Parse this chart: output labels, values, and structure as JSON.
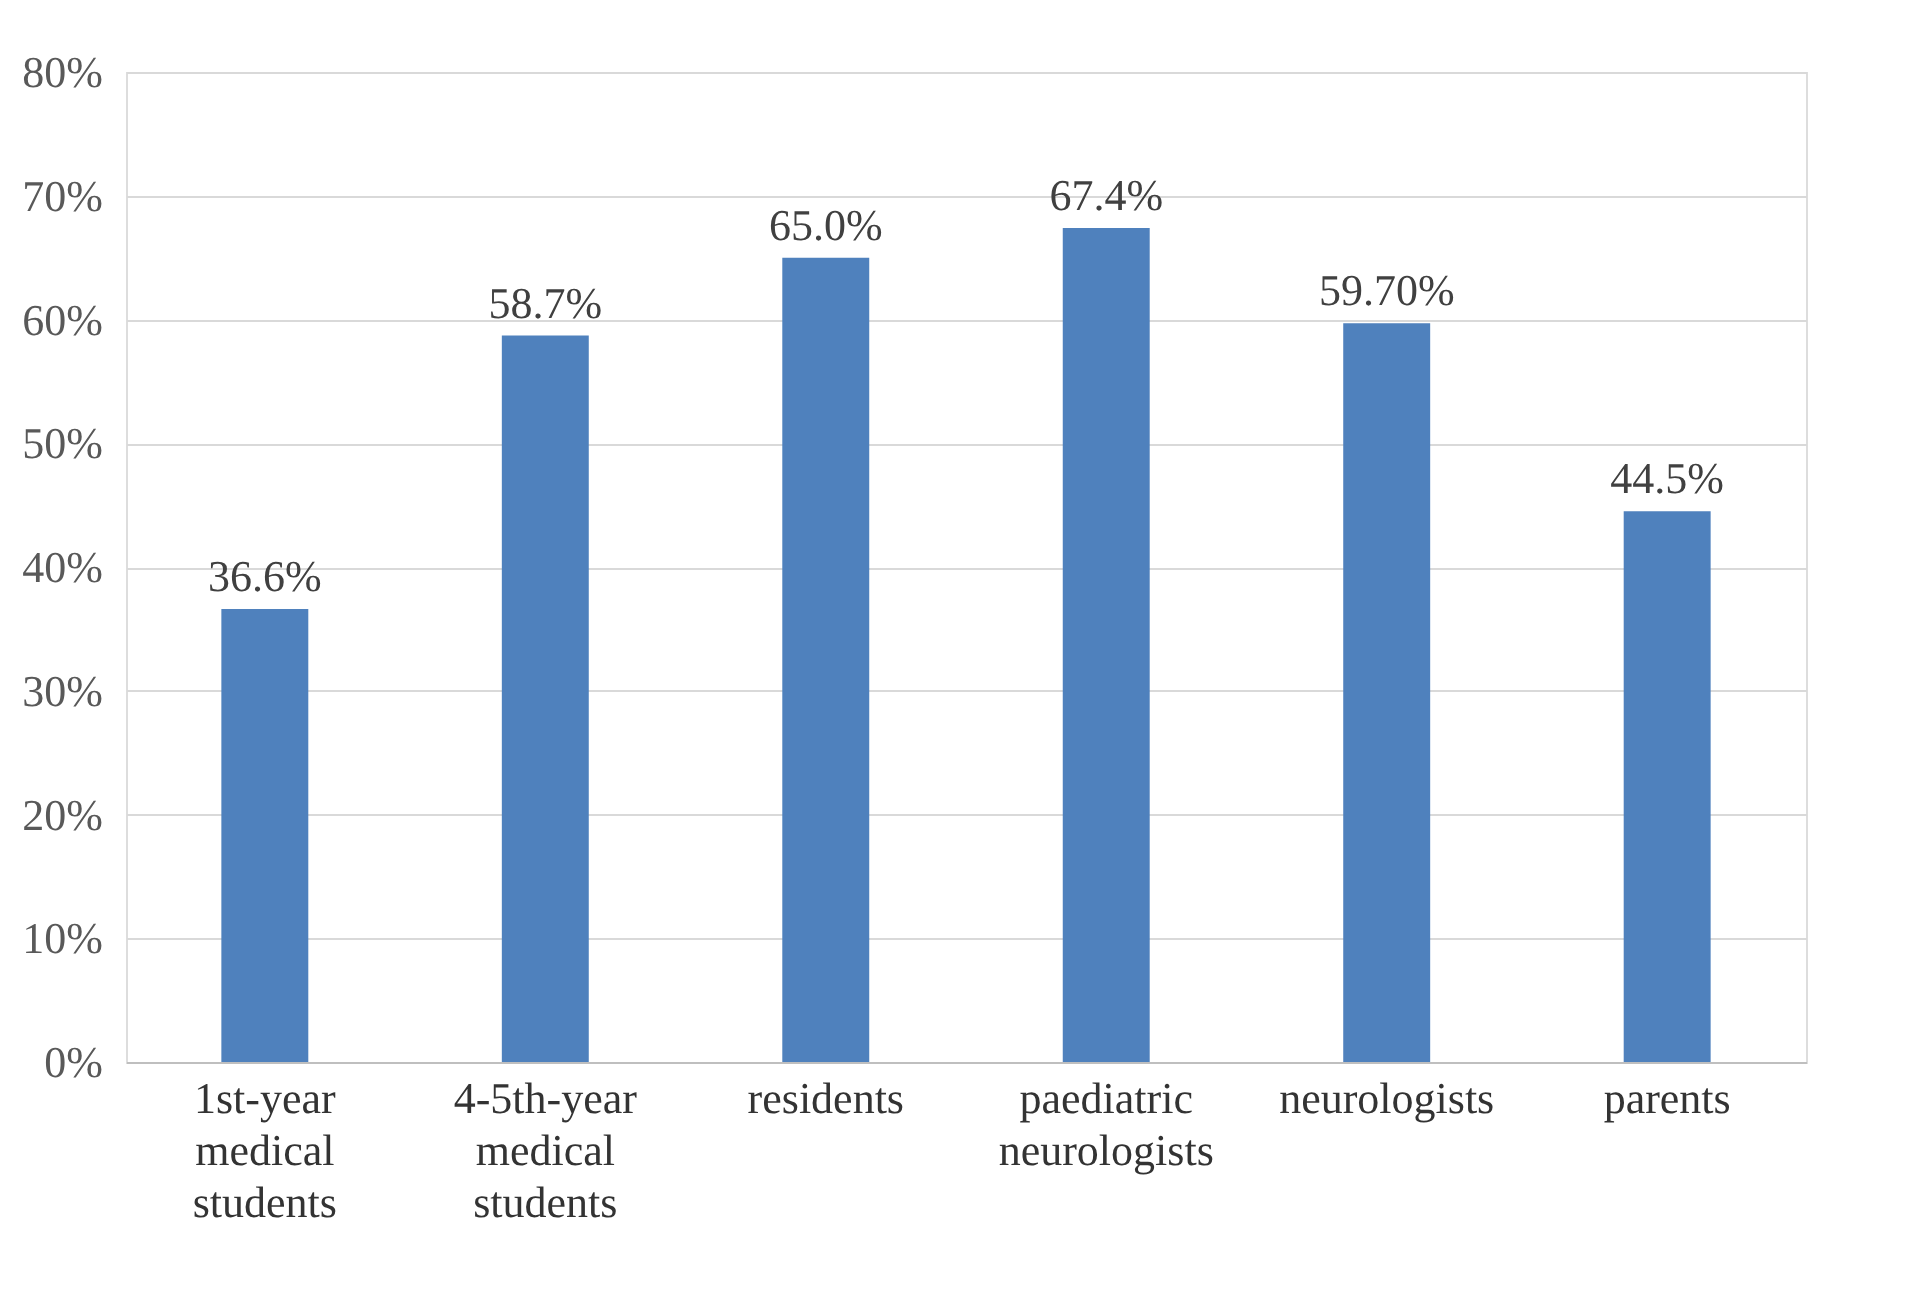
{
  "chart_data": {
    "type": "bar",
    "categories": [
      "1st-year\nmedical\nstudents",
      "4-5th-year\nmedical\nstudents",
      "residents",
      "paediatric\nneurologists",
      "neurologists",
      "parents"
    ],
    "values": [
      36.6,
      58.7,
      65.0,
      67.4,
      59.7,
      44.5
    ],
    "value_labels": [
      "36.6%",
      "58.7%",
      "65.0%",
      "67.4%",
      "59.70%",
      "44.5%"
    ],
    "color": "#4f81bd",
    "ylim": [
      0,
      80
    ],
    "yticks": [
      {
        "value": 0,
        "label": "0%"
      },
      {
        "value": 10,
        "label": "10%"
      },
      {
        "value": 20,
        "label": "20%"
      },
      {
        "value": 30,
        "label": "30%"
      },
      {
        "value": 40,
        "label": "40%"
      },
      {
        "value": 50,
        "label": "50%"
      },
      {
        "value": 60,
        "label": "60%"
      },
      {
        "value": 70,
        "label": "70%"
      },
      {
        "value": 80,
        "label": "80%"
      }
    ],
    "grid": "y"
  }
}
